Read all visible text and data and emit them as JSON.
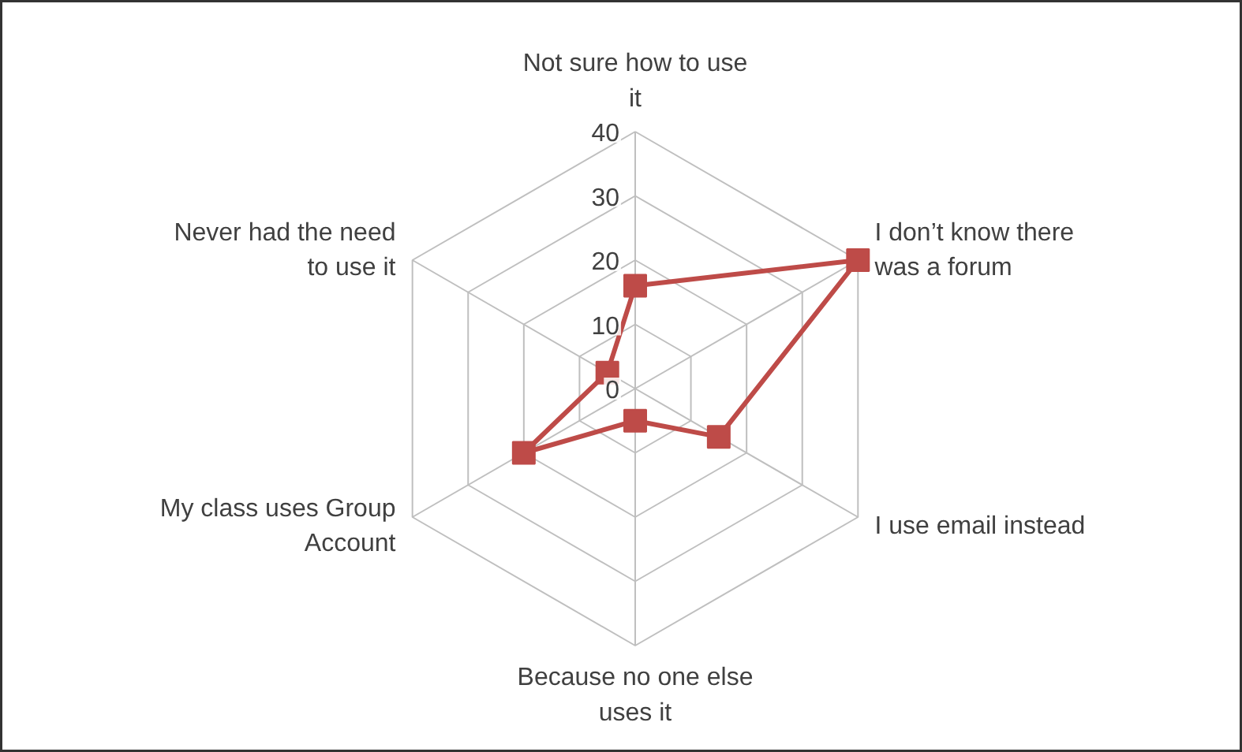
{
  "chart_data": {
    "type": "radar",
    "categories": [
      "Not sure how to use it",
      "I don’t know there was a forum",
      "I use email instead",
      "Because no one else uses it",
      "My class uses Group Account",
      "Never had the need to use it"
    ],
    "series": [
      {
        "color": "#be4b48",
        "values": [
          16,
          40,
          15,
          5,
          20,
          5
        ]
      }
    ],
    "ylim": [
      0,
      40
    ],
    "yticks": [
      0,
      10,
      20,
      30,
      40
    ],
    "grid": true,
    "marker": "square",
    "line_style": "solid"
  }
}
